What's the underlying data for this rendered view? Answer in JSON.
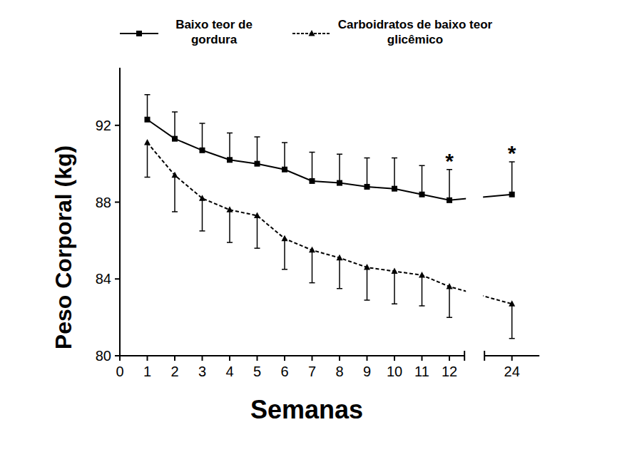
{
  "chart_data": {
    "type": "line",
    "x_label": "Semanas",
    "y_label": "Peso Corporal (kg)",
    "x": [
      1,
      2,
      3,
      4,
      5,
      6,
      7,
      8,
      9,
      10,
      11,
      12,
      24
    ],
    "xlim": [
      0,
      25
    ],
    "xticks": [
      0,
      1,
      2,
      3,
      4,
      5,
      6,
      7,
      8,
      9,
      10,
      11,
      12,
      24
    ],
    "ylim": [
      80,
      95
    ],
    "yticks": [
      80,
      84,
      88,
      92
    ],
    "grid": false,
    "legend": "top",
    "series": [
      {
        "name": "Baixo teor de gordura",
        "color": "#000000",
        "marker": "square",
        "line_style": "solid",
        "values": [
          92.3,
          91.3,
          90.7,
          90.2,
          90.0,
          89.7,
          89.1,
          89.0,
          88.8,
          88.7,
          88.4,
          88.1,
          88.4
        ],
        "errors": [
          1.3,
          1.4,
          1.4,
          1.4,
          1.4,
          1.4,
          1.5,
          1.5,
          1.5,
          1.6,
          1.5,
          1.6,
          1.7
        ]
      },
      {
        "name": "Carboidratos de baixo teor glicêmico",
        "color": "#000000",
        "marker": "triangle",
        "line_style": "dashed",
        "values": [
          91.1,
          89.4,
          88.2,
          87.6,
          87.3,
          86.1,
          85.5,
          85.1,
          84.6,
          84.4,
          84.2,
          83.6,
          82.7
        ],
        "errors": [
          1.8,
          1.9,
          1.7,
          1.7,
          1.7,
          1.6,
          1.7,
          1.6,
          1.7,
          1.7,
          1.6,
          1.6,
          1.8
        ]
      }
    ],
    "annotations": [
      {
        "x": 12,
        "text": "*"
      },
      {
        "x": 24,
        "text": "*"
      }
    ]
  }
}
